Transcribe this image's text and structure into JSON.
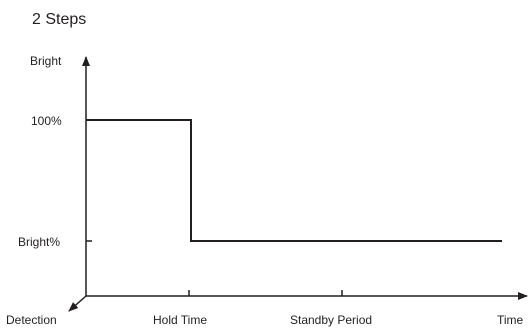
{
  "title": "2 Steps",
  "y_axis_label": "Bright",
  "y_levels": {
    "high": "100%",
    "low": "Bright%"
  },
  "x_axis_label": "Time",
  "origin_label": "Detection",
  "x_markers": {
    "hold": "Hold Time",
    "standby": "Standby Period"
  },
  "colors": {
    "line": "#231f20",
    "text": "#231f20"
  }
}
